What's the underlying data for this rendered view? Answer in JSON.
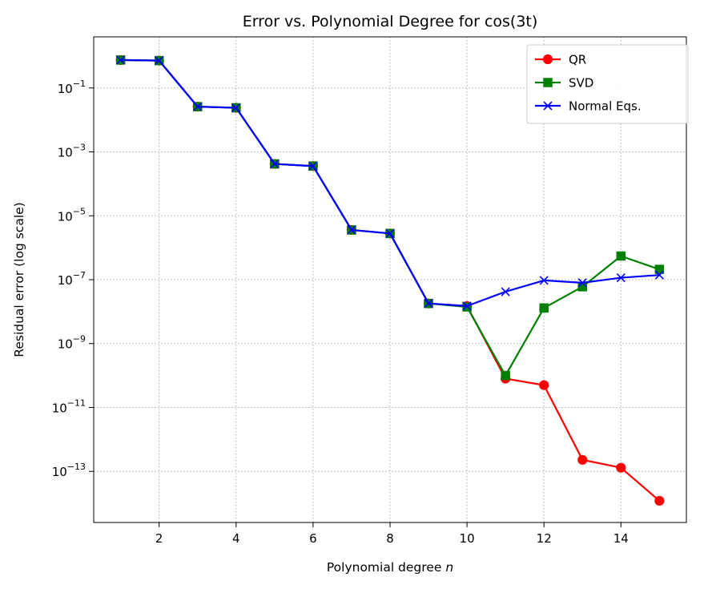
{
  "chart_data": {
    "type": "line",
    "title": "Error vs. Polynomial Degree for cos(3t)",
    "xlabel_prefix": "Polynomial degree ",
    "xlabel_var": "n",
    "ylabel": "Residual error (log scale)",
    "x_scale": "linear",
    "y_scale": "log",
    "xlim": [
      0.3,
      15.7
    ],
    "ylim_log10": [
      -14.6,
      0.6
    ],
    "x_ticks": [
      2,
      4,
      6,
      8,
      10,
      12,
      14
    ],
    "y_ticks_exponents": [
      -13,
      -11,
      -9,
      -7,
      -5,
      -3,
      -1
    ],
    "y_tick_base": "10",
    "grid": true,
    "legend_position": "top-right",
    "x": [
      1,
      2,
      3,
      4,
      5,
      6,
      7,
      8,
      9,
      10,
      11,
      12,
      13,
      14,
      15
    ],
    "series": [
      {
        "name": "QR",
        "color": "#ff0000",
        "marker": "circle",
        "values": [
          0.75,
          0.72,
          0.026,
          0.024,
          0.00042,
          0.00036,
          3.6e-06,
          2.8e-06,
          1.8e-08,
          1.5e-08,
          8e-11,
          5e-11,
          2.3e-13,
          1.3e-13,
          1.2e-14
        ]
      },
      {
        "name": "SVD",
        "color": "#008000",
        "marker": "square",
        "values": [
          0.75,
          0.72,
          0.026,
          0.024,
          0.00042,
          0.00036,
          3.6e-06,
          2.8e-06,
          1.8e-08,
          1.4e-08,
          1e-10,
          1.3e-08,
          6e-08,
          5.5e-07,
          2.1e-07
        ]
      },
      {
        "name": "Normal Eqs.",
        "color": "#0000ff",
        "marker": "x",
        "values": [
          0.75,
          0.72,
          0.026,
          0.024,
          0.00042,
          0.00036,
          3.6e-06,
          2.8e-06,
          1.8e-08,
          1.5e-08,
          4.2e-08,
          9.5e-08,
          8e-08,
          1.15e-07,
          1.4e-07
        ]
      }
    ]
  }
}
